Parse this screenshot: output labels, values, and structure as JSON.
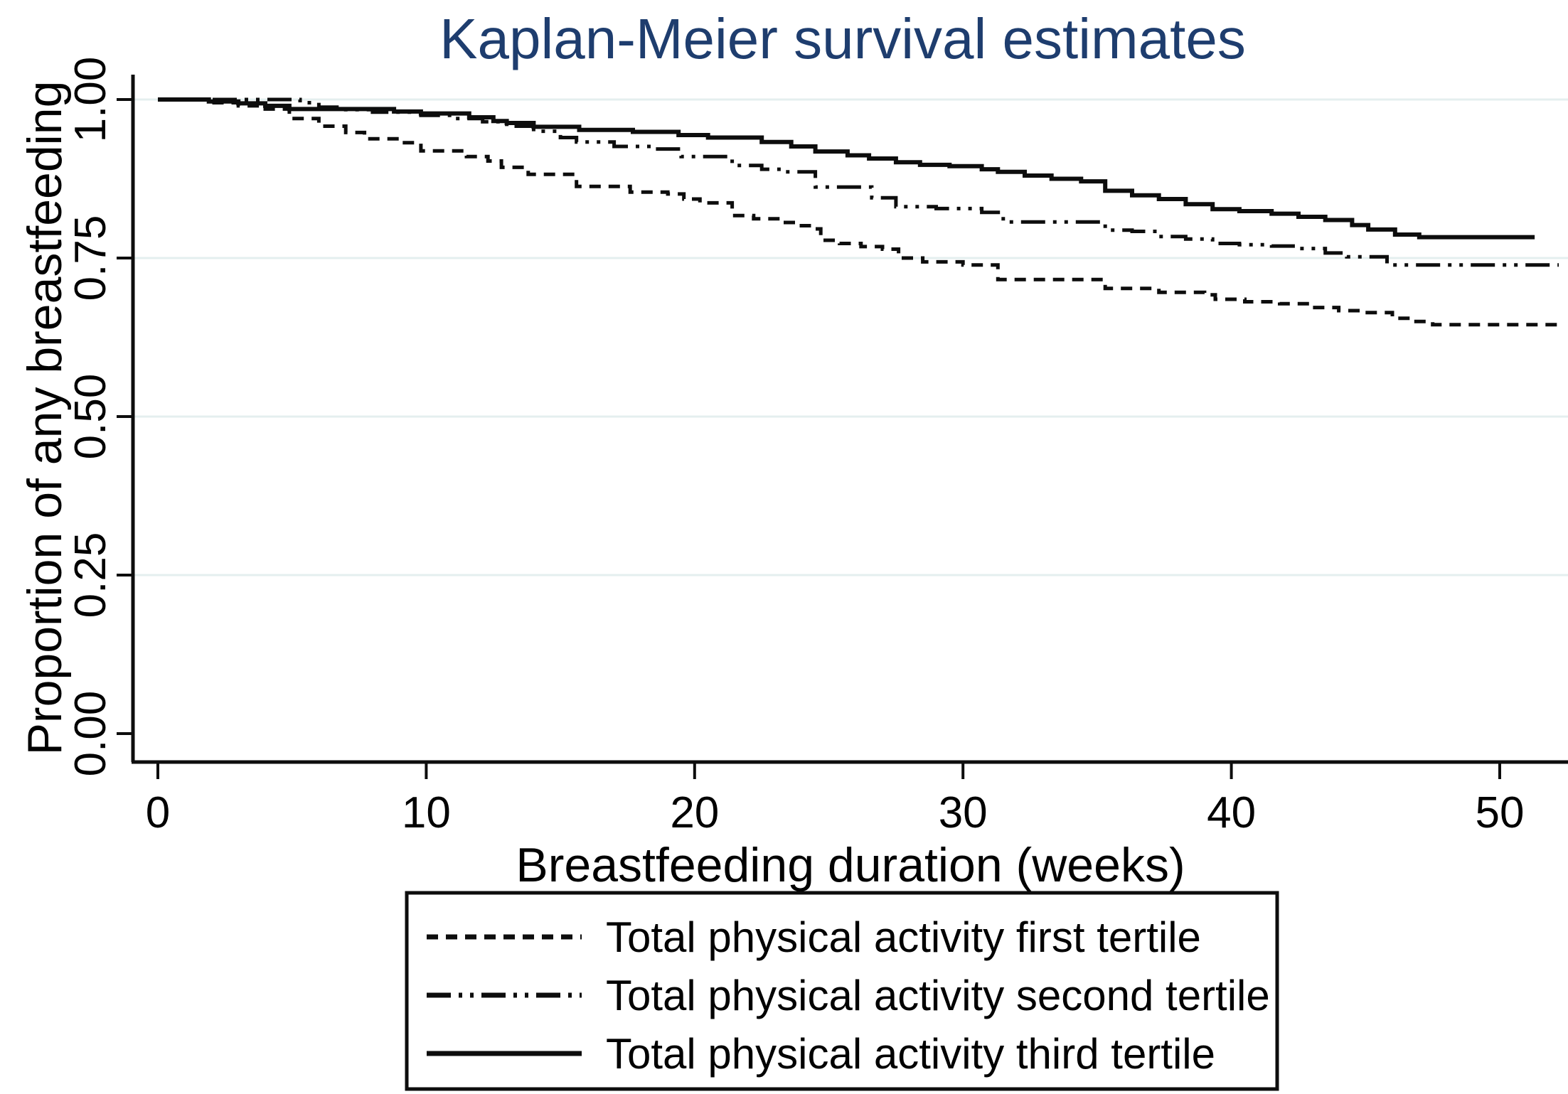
{
  "title": {
    "text": "Kaplan-Meier survival estimates",
    "color": "#1e3d6e"
  },
  "chart_data": {
    "type": "line",
    "subtype": "kaplan-meier-step",
    "title": "Kaplan-Meier survival estimates",
    "xlabel": "Breastfeeding duration (weeks)",
    "ylabel": "Proportion of any breastfeeding",
    "xlim": [
      0,
      52.6
    ],
    "ylim": [
      0.0,
      1.0
    ],
    "x_tick_values": [
      0,
      10,
      20,
      30,
      40,
      50
    ],
    "x_tick_labels": [
      "0",
      "10",
      "20",
      "30",
      "40",
      "50"
    ],
    "y_tick_values": [
      0.0,
      0.25,
      0.5,
      0.75,
      1.0
    ],
    "y_tick_labels": [
      "0.00",
      "0.25",
      "0.50",
      "0.75",
      "1.00"
    ],
    "grid": {
      "show": true,
      "at": [
        0.25,
        0.5,
        0.75,
        1.0
      ],
      "color": "#e4efef"
    },
    "legend_position": "bottom-center",
    "line_color": "#0d0d0d",
    "series": [
      {
        "name": "Total physical activity first tertile",
        "style": "dashed",
        "end_week": 52.2,
        "points": [
          [
            0,
            1.0
          ],
          [
            1.9,
            0.995
          ],
          [
            3,
            0.99
          ],
          [
            4,
            0.985
          ],
          [
            4.9,
            0.97
          ],
          [
            6,
            0.958
          ],
          [
            7,
            0.948
          ],
          [
            7.7,
            0.938
          ],
          [
            9,
            0.932
          ],
          [
            9.8,
            0.919
          ],
          [
            11.5,
            0.91
          ],
          [
            12.3,
            0.903
          ],
          [
            12.8,
            0.893
          ],
          [
            13.8,
            0.882
          ],
          [
            15.6,
            0.863
          ],
          [
            17.6,
            0.854
          ],
          [
            19,
            0.851
          ],
          [
            19.6,
            0.843
          ],
          [
            20.2,
            0.837
          ],
          [
            21.4,
            0.817
          ],
          [
            22.2,
            0.812
          ],
          [
            23.1,
            0.806
          ],
          [
            23.9,
            0.801
          ],
          [
            24.5,
            0.796
          ],
          [
            24.7,
            0.778
          ],
          [
            25.4,
            0.773
          ],
          [
            26.2,
            0.768
          ],
          [
            27,
            0.764
          ],
          [
            27.6,
            0.75
          ],
          [
            28.5,
            0.744
          ],
          [
            30,
            0.739
          ],
          [
            31.3,
            0.716
          ],
          [
            35.3,
            0.702
          ],
          [
            37.3,
            0.696
          ],
          [
            39,
            0.692
          ],
          [
            39.4,
            0.685
          ],
          [
            40.5,
            0.681
          ],
          [
            41.8,
            0.678
          ],
          [
            43,
            0.672
          ],
          [
            44,
            0.667
          ],
          [
            44.8,
            0.664
          ],
          [
            46,
            0.655
          ],
          [
            46.7,
            0.65
          ],
          [
            47.5,
            0.645
          ]
        ]
      },
      {
        "name": "Total physical activity second tertile",
        "style": "dash-dot-dot",
        "end_week": 52.2,
        "points": [
          [
            0,
            1.0
          ],
          [
            5.3,
            0.995
          ],
          [
            6,
            0.988
          ],
          [
            7,
            0.984
          ],
          [
            8,
            0.98
          ],
          [
            9.8,
            0.975
          ],
          [
            11,
            0.97
          ],
          [
            12.1,
            0.965
          ],
          [
            13,
            0.958
          ],
          [
            14,
            0.95
          ],
          [
            15,
            0.94
          ],
          [
            15.6,
            0.933
          ],
          [
            17,
            0.926
          ],
          [
            18.5,
            0.922
          ],
          [
            19.5,
            0.91
          ],
          [
            21.4,
            0.896
          ],
          [
            22.5,
            0.89
          ],
          [
            23.4,
            0.886
          ],
          [
            24.5,
            0.862
          ],
          [
            26.6,
            0.845
          ],
          [
            27.5,
            0.831
          ],
          [
            29,
            0.828
          ],
          [
            30.7,
            0.822
          ],
          [
            31.5,
            0.807
          ],
          [
            35.3,
            0.794
          ],
          [
            36.3,
            0.792
          ],
          [
            37.3,
            0.784
          ],
          [
            38.3,
            0.78
          ],
          [
            39.3,
            0.773
          ],
          [
            40.3,
            0.771
          ],
          [
            41.5,
            0.769
          ],
          [
            42.5,
            0.765
          ],
          [
            43.5,
            0.758
          ],
          [
            44.3,
            0.752
          ],
          [
            45.8,
            0.739
          ]
        ]
      },
      {
        "name": "Total physical activity third tertile",
        "style": "solid",
        "end_week": 51.3,
        "points": [
          [
            0,
            1.0
          ],
          [
            1.9,
            0.997
          ],
          [
            3,
            0.994
          ],
          [
            4,
            0.99
          ],
          [
            4.9,
            0.985
          ],
          [
            8.8,
            0.981
          ],
          [
            9.8,
            0.978
          ],
          [
            11.6,
            0.972
          ],
          [
            12.5,
            0.966
          ],
          [
            13,
            0.963
          ],
          [
            14,
            0.957
          ],
          [
            15.7,
            0.952
          ],
          [
            17.7,
            0.949
          ],
          [
            19.4,
            0.944
          ],
          [
            20.5,
            0.94
          ],
          [
            22.5,
            0.933
          ],
          [
            23.6,
            0.926
          ],
          [
            24.5,
            0.918
          ],
          [
            25.7,
            0.912
          ],
          [
            26.5,
            0.907
          ],
          [
            27.5,
            0.901
          ],
          [
            28.4,
            0.897
          ],
          [
            29.5,
            0.895
          ],
          [
            30.7,
            0.89
          ],
          [
            31.3,
            0.886
          ],
          [
            32.3,
            0.88
          ],
          [
            33.3,
            0.875
          ],
          [
            34.4,
            0.871
          ],
          [
            35.3,
            0.856
          ],
          [
            36.3,
            0.849
          ],
          [
            37.3,
            0.843
          ],
          [
            38.3,
            0.835
          ],
          [
            39.3,
            0.827
          ],
          [
            40.3,
            0.824
          ],
          [
            41.5,
            0.82
          ],
          [
            42.5,
            0.815
          ],
          [
            43.5,
            0.81
          ],
          [
            44.5,
            0.802
          ],
          [
            45.1,
            0.795
          ],
          [
            46.1,
            0.787
          ],
          [
            47,
            0.783
          ]
        ]
      }
    ]
  }
}
